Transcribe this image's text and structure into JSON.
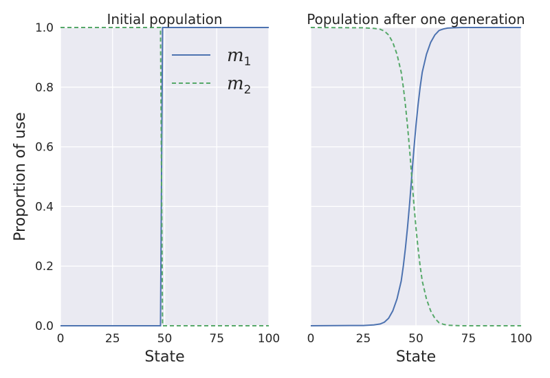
{
  "chart_data": [
    {
      "type": "line",
      "title": "Initial population",
      "xlabel": "State",
      "ylabel": "Proportion of use",
      "xlim": [
        0,
        100
      ],
      "ylim": [
        0,
        1
      ],
      "xticks": [
        "0",
        "25",
        "50",
        "75",
        "100"
      ],
      "yticks": [
        "0.0",
        "0.2",
        "0.4",
        "0.6",
        "0.8",
        "1.0"
      ],
      "grid": true,
      "legend_position": "top-right",
      "series": [
        {
          "name": "m1",
          "legend_label": "m",
          "legend_sub": "1",
          "color": "#4C72B0",
          "dash": "solid",
          "x": [
            0,
            48,
            49,
            100
          ],
          "y": [
            0,
            0,
            1,
            1
          ]
        },
        {
          "name": "m2",
          "legend_label": "m",
          "legend_sub": "2",
          "color": "#55A868",
          "dash": "dashed",
          "x": [
            0,
            48,
            49,
            100
          ],
          "y": [
            1,
            1,
            0,
            0
          ]
        }
      ]
    },
    {
      "type": "line",
      "title": "Population after one generation",
      "xlabel": "State",
      "ylabel": "",
      "xlim": [
        0,
        100
      ],
      "ylim": [
        0,
        1
      ],
      "xticks": [
        "0",
        "25",
        "50",
        "75",
        "100"
      ],
      "yticks": [],
      "grid": true,
      "series": [
        {
          "name": "m1",
          "color": "#4C72B0",
          "dash": "solid",
          "x": [
            0,
            25,
            30,
            33,
            35,
            37,
            39,
            41,
            43,
            44,
            45,
            46,
            47,
            48,
            49,
            50,
            51,
            52,
            53,
            54,
            55,
            57,
            59,
            61,
            63,
            65,
            68,
            72,
            100
          ],
          "y": [
            0,
            0.001,
            0.003,
            0.006,
            0.012,
            0.025,
            0.05,
            0.09,
            0.15,
            0.2,
            0.26,
            0.33,
            0.41,
            0.5,
            0.59,
            0.67,
            0.74,
            0.8,
            0.85,
            0.88,
            0.91,
            0.95,
            0.975,
            0.99,
            0.995,
            0.998,
            0.999,
            1,
            1
          ]
        },
        {
          "name": "m2",
          "color": "#55A868",
          "dash": "dashed",
          "x": [
            0,
            25,
            30,
            33,
            35,
            37,
            39,
            41,
            43,
            44,
            45,
            46,
            47,
            48,
            49,
            50,
            51,
            52,
            53,
            54,
            55,
            57,
            59,
            61,
            63,
            65,
            68,
            72,
            100
          ],
          "y": [
            1,
            0.999,
            0.997,
            0.994,
            0.988,
            0.975,
            0.95,
            0.91,
            0.85,
            0.8,
            0.74,
            0.67,
            0.59,
            0.5,
            0.41,
            0.33,
            0.26,
            0.2,
            0.15,
            0.12,
            0.09,
            0.05,
            0.025,
            0.01,
            0.005,
            0.002,
            0.001,
            0,
            0
          ]
        }
      ]
    }
  ]
}
